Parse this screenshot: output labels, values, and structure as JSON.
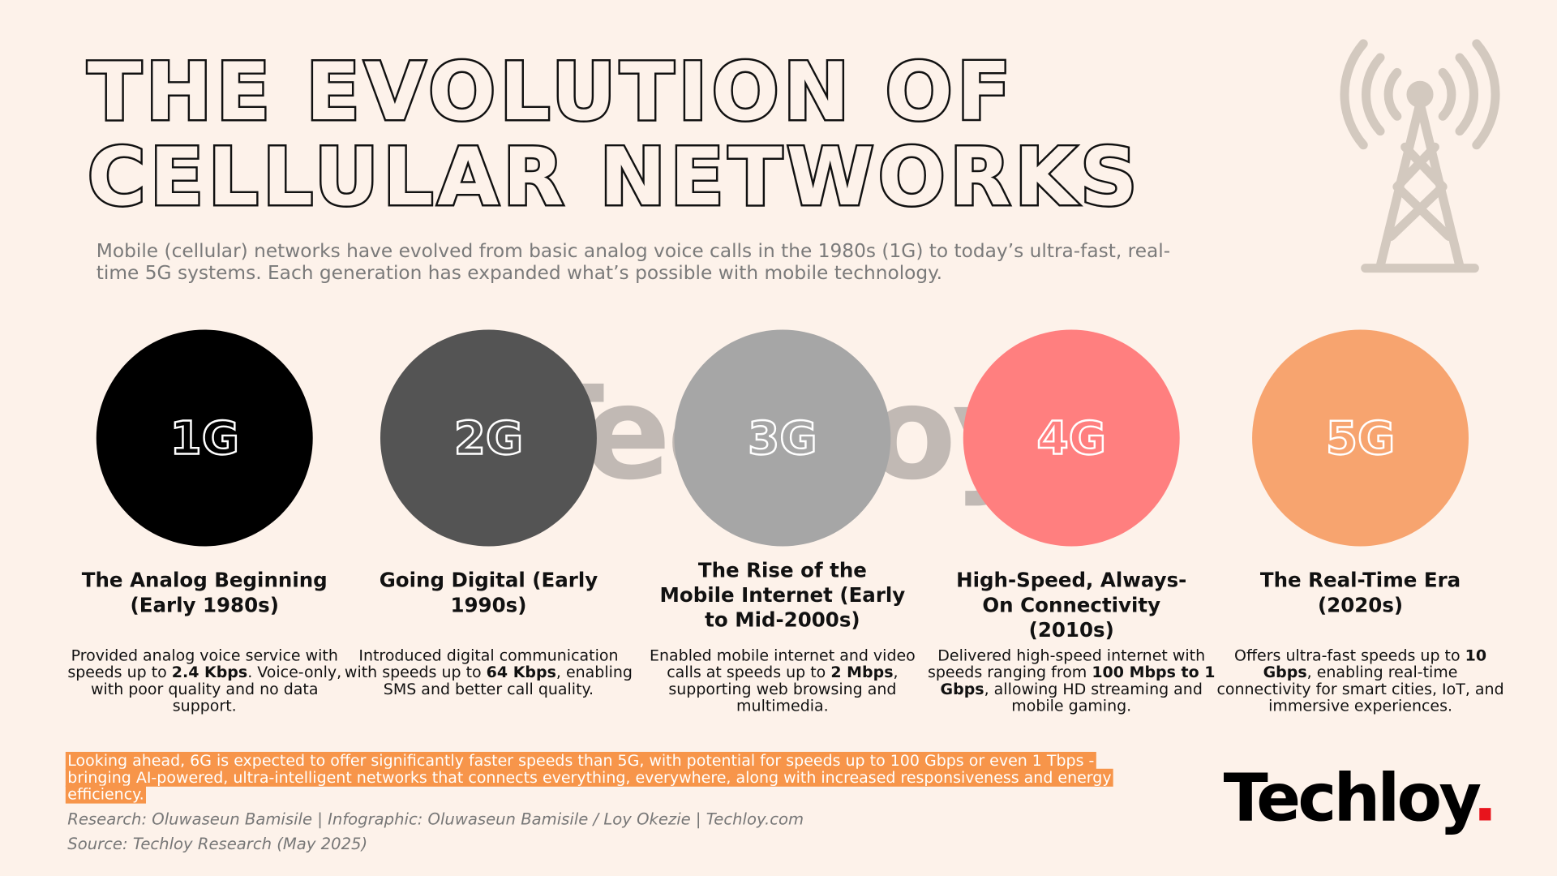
{
  "title_line1": "THE EVOLUTION OF",
  "title_line2": "CELLULAR NETWORKS",
  "subtitle": "Mobile (cellular) networks have evolved from basic analog voice calls in the 1980s (1G) to today’s ultra-fast, real-time 5G systems. Each generation has expanded what’s possible with mobile technology.",
  "icon": "cell-tower-icon",
  "watermark": "Techloy.",
  "generations": [
    {
      "label": "1G",
      "color": "#000000",
      "heading": "The Analog Beginning (Early 1980s)",
      "desc_pre": "Provided analog voice service with speeds up to ",
      "desc_bold": "2.4 Kbps",
      "desc_post": ". Voice-only, with poor quality and no data support."
    },
    {
      "label": "2G",
      "color": "#545454",
      "heading": "Going Digital (Early 1990s)",
      "desc_pre": "Introduced digital communication with speeds up to ",
      "desc_bold": "64 Kbps",
      "desc_post": ", enabling SMS and better call quality."
    },
    {
      "label": "3G",
      "color": "#a6a6a6",
      "heading": "The Rise of the Mobile Internet (Early to Mid-2000s)",
      "desc_pre": "Enabled mobile internet and video calls at speeds up to ",
      "desc_bold": "2 Mbps",
      "desc_post": ", supporting web browsing and multimedia."
    },
    {
      "label": "4G",
      "color": "#ff7f7f",
      "heading": "High-Speed, Always-On Connectivity (2010s)",
      "desc_pre": "Delivered high-speed internet with speeds ranging from ",
      "desc_bold": "100 Mbps to 1 Gbps",
      "desc_post": ", allowing HD streaming and mobile gaming."
    },
    {
      "label": "5G",
      "color": "#f7a46f",
      "heading": "The Real-Time Era (2020s)",
      "desc_pre": "Offers ultra-fast speeds up to ",
      "desc_bold": "10 Gbps",
      "desc_post": ", enabling real-time connectivity for smart cities, IoT, and immersive experiences."
    }
  ],
  "outlook": "Looking ahead, 6G is expected to offer significantly faster speeds than 5G, with potential for speeds up to 100 Gbps or even 1 Tbps - bringing AI-powered, ultra-intelligent networks that connects everything, everywhere, along with increased responsiveness and energy efficiency.",
  "credits": "Research: Oluwaseun Bamisile | Infographic: Oluwaseun Bamisile / Loy Okezie | Techloy.com",
  "source": "Source: Techloy Research (May 2025)",
  "logo": {
    "text": "Techloy",
    "dot": "."
  },
  "colors": {
    "background": "#fdf2ea",
    "highlight": "#f7954a",
    "logo_dot": "#e8141c"
  }
}
